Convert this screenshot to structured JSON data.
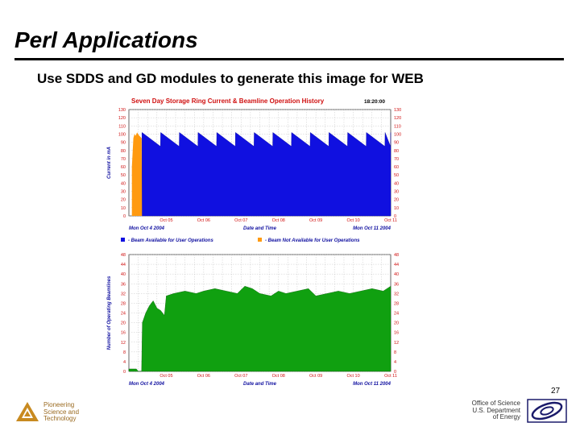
{
  "slide": {
    "title": "Perl Applications",
    "bullet": "Use SDDS and GD modules to generate this image for WEB",
    "page_number": "27",
    "footer_left": [
      "Pioneering",
      "Science and",
      "Technology"
    ],
    "footer_right": [
      "Office of Science",
      "U.S. Department",
      "of Energy"
    ]
  },
  "chart_data": [
    {
      "type": "area",
      "title": "Seven Day Storage Ring Current & Beamline Operation History",
      "timestamp": "18:20:00",
      "ylabel": "Current in mA",
      "xlabel": "Date and Time",
      "start_label": "Mon Oct  4 2004",
      "end_label": "Mon Oct 11 2004",
      "ylim": [
        0,
        130
      ],
      "yticks": [
        "130",
        "120",
        "110",
        "100",
        "90",
        "80",
        "70",
        "60",
        "50",
        "40",
        "30",
        "20",
        "10",
        "0"
      ],
      "yticks_right": [
        "130",
        "120",
        "110",
        "100",
        "90",
        "80",
        "70",
        "60",
        "50",
        "40",
        "30",
        "20",
        "10",
        "0"
      ],
      "xticks": [
        "Oct 05",
        "Oct 06",
        "Oct 07",
        "Oct 08",
        "Oct 09",
        "Oct 10",
        "Oct 11"
      ],
      "legend": [
        {
          "label": "- Beam Available for User Operations",
          "color": "#1010e0"
        },
        {
          "label": "- Beam Not Available for User Operations",
          "color": "#ff9a10"
        }
      ],
      "beam_available_from_day": 0.35,
      "current_peak": 102,
      "current_trough": 85,
      "fill_interval_days": 0.5,
      "grid": true
    },
    {
      "type": "area",
      "ylabel": "Number of Operating Beamlines",
      "xlabel": "Date and Time",
      "start_label": "Mon Oct  4 2004",
      "end_label": "Mon Oct 11 2004",
      "ylim": [
        0,
        48
      ],
      "yticks": [
        "48",
        "44",
        "40",
        "36",
        "32",
        "28",
        "24",
        "20",
        "16",
        "12",
        "8",
        "4",
        "0"
      ],
      "yticks_right": [
        "48",
        "44",
        "40",
        "36",
        "32",
        "28",
        "24",
        "20",
        "16",
        "12",
        "8",
        "4",
        "0"
      ],
      "xticks": [
        "Oct 05",
        "Oct 06",
        "Oct 07",
        "Oct 08",
        "Oct 09",
        "Oct 10",
        "Oct 11"
      ],
      "series_color": "#10a010",
      "grid": true,
      "points": [
        [
          0,
          1
        ],
        [
          0.2,
          1
        ],
        [
          0.25,
          0
        ],
        [
          0.34,
          0
        ],
        [
          0.36,
          20
        ],
        [
          0.45,
          24
        ],
        [
          0.55,
          27
        ],
        [
          0.65,
          29
        ],
        [
          0.75,
          26
        ],
        [
          0.85,
          25
        ],
        [
          0.95,
          23
        ],
        [
          1.0,
          31
        ],
        [
          1.2,
          32
        ],
        [
          1.5,
          33
        ],
        [
          1.8,
          32
        ],
        [
          2.0,
          33
        ],
        [
          2.3,
          34
        ],
        [
          2.6,
          33
        ],
        [
          2.9,
          32
        ],
        [
          3.1,
          35
        ],
        [
          3.3,
          34
        ],
        [
          3.5,
          32
        ],
        [
          3.8,
          31
        ],
        [
          4.0,
          33
        ],
        [
          4.2,
          32
        ],
        [
          4.5,
          33
        ],
        [
          4.8,
          34
        ],
        [
          5.0,
          31
        ],
        [
          5.3,
          32
        ],
        [
          5.6,
          33
        ],
        [
          5.9,
          32
        ],
        [
          6.2,
          33
        ],
        [
          6.5,
          34
        ],
        [
          6.8,
          33
        ],
        [
          7.0,
          35
        ]
      ]
    }
  ]
}
